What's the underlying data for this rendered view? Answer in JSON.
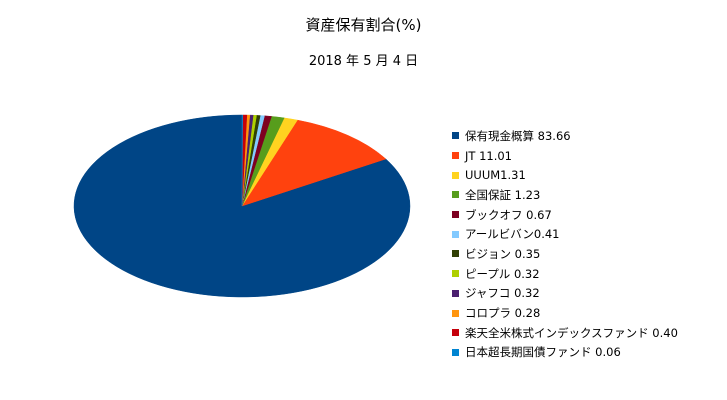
{
  "chart_data": {
    "type": "pie",
    "title": "資産保有割合(%)",
    "subtitle": "2018 年 5 月 4 日",
    "legend_position": "right",
    "three_d": true,
    "slices": [
      {
        "label": "保有現金概算",
        "value": 83.66,
        "display": "保有現金概算 83.66",
        "color": "#004586"
      },
      {
        "label": "JT",
        "value": 11.01,
        "display": "JT 11.01",
        "color": "#ff420e"
      },
      {
        "label": "UUUM",
        "value": 1.31,
        "display": "UUUM1.31",
        "color": "#ffd320"
      },
      {
        "label": "全国保証",
        "value": 1.23,
        "display": "全国保証 1.23",
        "color": "#579d1c"
      },
      {
        "label": "ブックオフ",
        "value": 0.67,
        "display": "ブックオフ 0.67",
        "color": "#7e0021"
      },
      {
        "label": "アールビバン",
        "value": 0.41,
        "display": "アールビバン0.41",
        "color": "#83caff"
      },
      {
        "label": "ビジョン",
        "value": 0.35,
        "display": "ビジョン 0.35",
        "color": "#314004"
      },
      {
        "label": "ピープル",
        "value": 0.32,
        "display": "ピープル 0.32",
        "color": "#aecf00"
      },
      {
        "label": "ジャフコ",
        "value": 0.32,
        "display": "ジャフコ 0.32",
        "color": "#4b1f6f"
      },
      {
        "label": "コロプラ",
        "value": 0.28,
        "display": "コロプラ 0.28",
        "color": "#ff950e"
      },
      {
        "label": "楽天全米株式インデックスファンド",
        "value": 0.4,
        "display": "楽天全米株式インデックスファンド  0.40",
        "color": "#c5000b"
      },
      {
        "label": "日本超長期国債ファンド",
        "value": 0.06,
        "display": "日本超長期国債ファンド 0.06",
        "color": "#0084d1"
      }
    ]
  }
}
